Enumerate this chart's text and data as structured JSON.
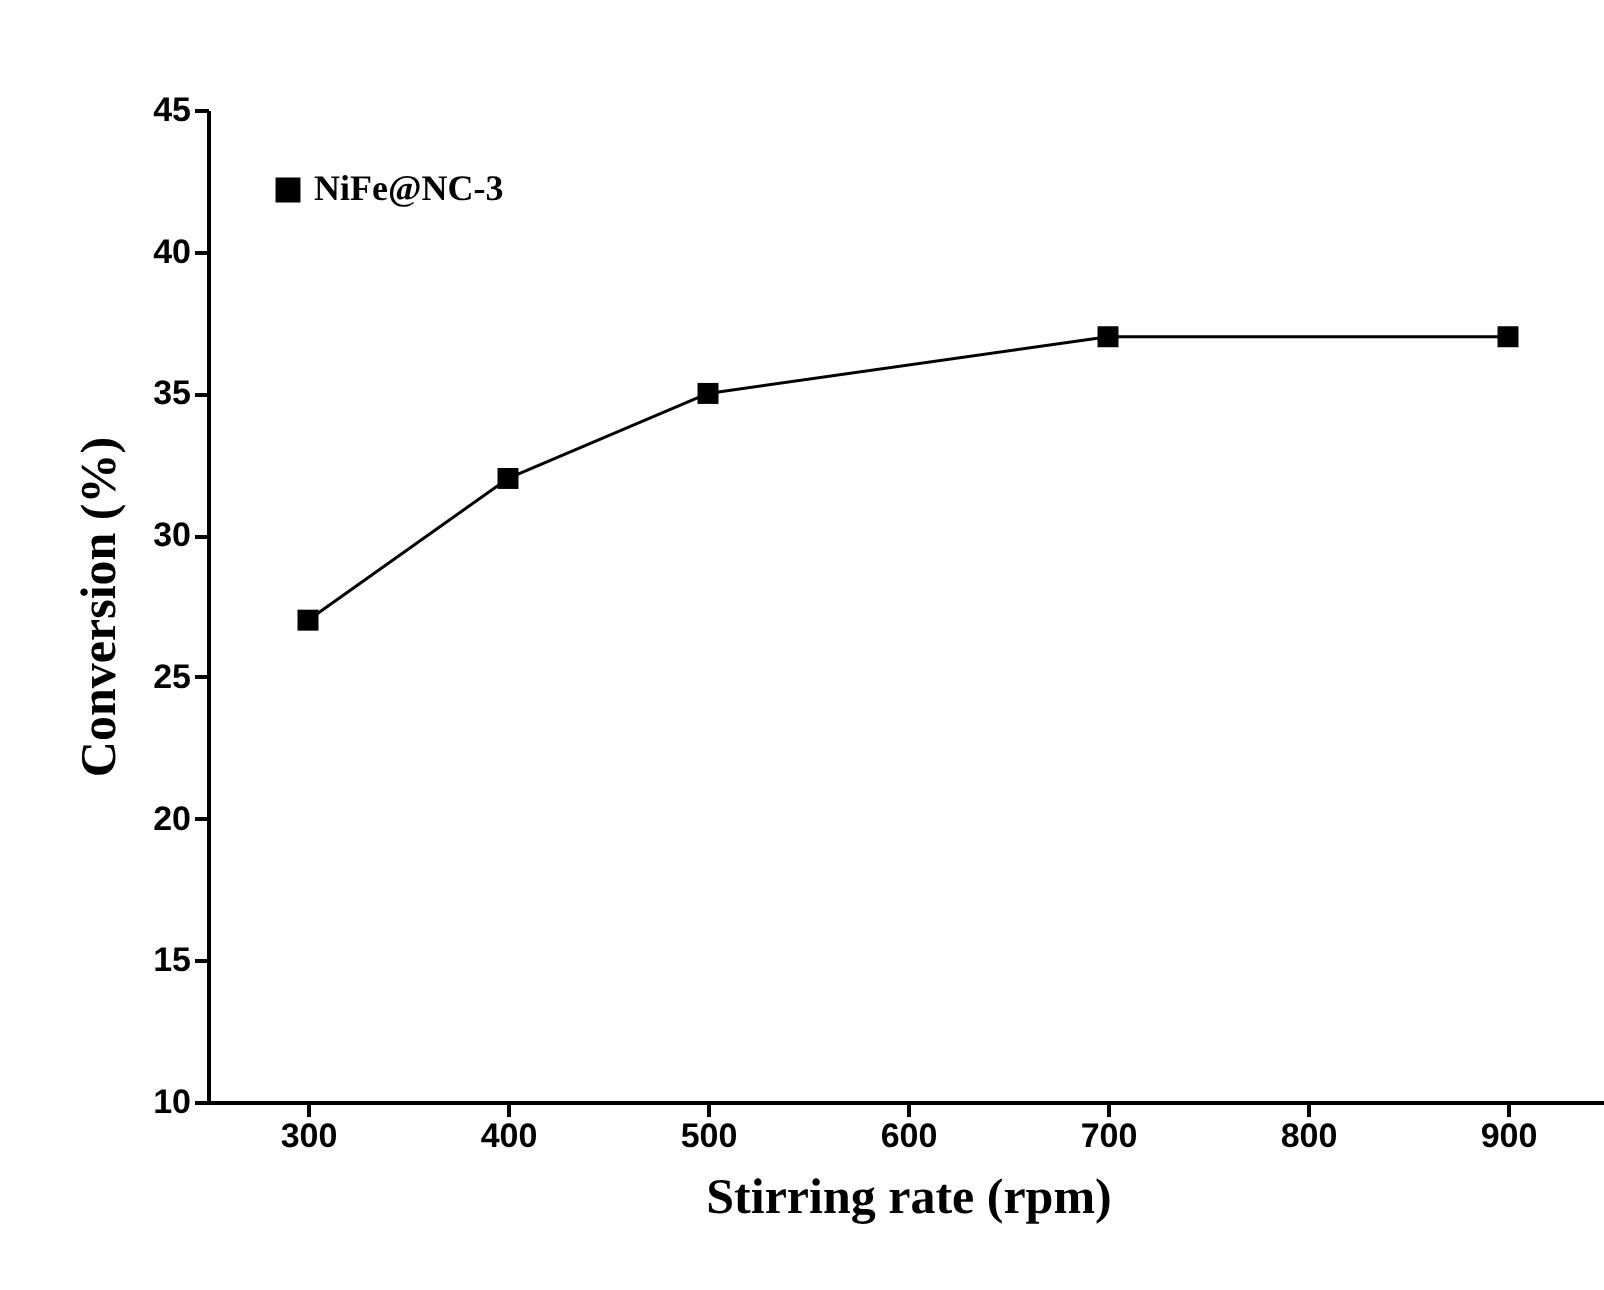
{
  "chart_data": {
    "type": "line",
    "xlabel": "Stirring rate (rpm)",
    "ylabel": "Conversion (%)",
    "x": [
      300,
      400,
      500,
      700,
      900
    ],
    "series": [
      {
        "name": "NiFe@NC-3",
        "color": "#000000",
        "values": [
          27,
          32,
          35,
          37,
          37
        ]
      }
    ],
    "xlim": [
      250,
      950
    ],
    "xticks": [
      300,
      400,
      500,
      600,
      700,
      800,
      900
    ],
    "ylim": [
      10,
      45
    ],
    "yticks": [
      10,
      15,
      20,
      25,
      30,
      35,
      40,
      45
    ],
    "marker": "square",
    "line_style": "solid",
    "legend": "top left",
    "grid": false
  }
}
